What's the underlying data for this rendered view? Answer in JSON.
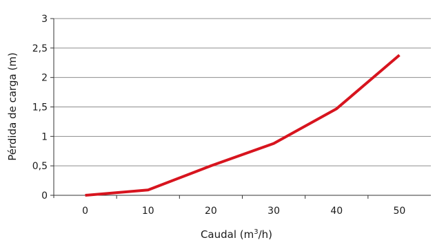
{
  "chart_data": {
    "type": "line",
    "x": [
      0,
      10,
      20,
      30,
      40,
      50
    ],
    "series": [
      {
        "values": [
          0,
          0.09,
          0.5,
          0.88,
          1.47,
          2.38
        ],
        "color": "#d7141e"
      }
    ],
    "xlabel": "Caudal (m",
    "xlabel_sup": "3",
    "xlabel_suffix": "/h)",
    "ylabel": "Pérdida de carga (m)",
    "xlim": [
      -5,
      55
    ],
    "ylim": [
      0,
      3
    ],
    "xticks": [
      0,
      10,
      20,
      30,
      40,
      50
    ],
    "xtick_labels": [
      "0",
      "10",
      "20",
      "30",
      "40",
      "50"
    ],
    "yticks": [
      0,
      0.5,
      1,
      1.5,
      2,
      2.5,
      3
    ],
    "ytick_labels": [
      "0",
      "0,5",
      "1",
      "1,5",
      "2",
      "2,5",
      "3"
    ],
    "grid": true,
    "grid_color": "#8c8c8c",
    "axis_color": "#333333"
  }
}
